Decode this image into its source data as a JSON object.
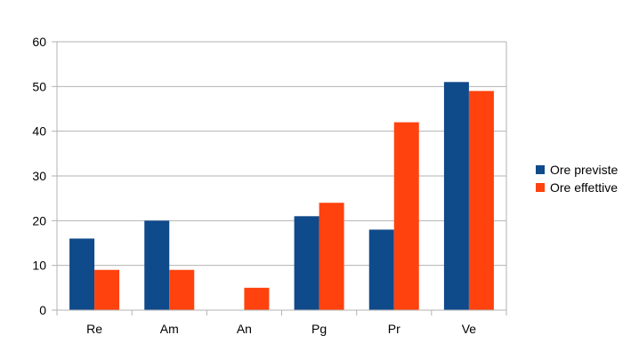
{
  "chart_data": {
    "type": "bar",
    "categories": [
      "Re",
      "Am",
      "An",
      "Pg",
      "Pr",
      "Ve"
    ],
    "series": [
      {
        "name": "Ore previste",
        "color": "#0F4A8A",
        "values": [
          16,
          20,
          0,
          21,
          18,
          51
        ]
      },
      {
        "name": "Ore effettive",
        "color": "#FF420E",
        "values": [
          9,
          9,
          5,
          24,
          42,
          49
        ]
      }
    ],
    "title": "",
    "xlabel": "",
    "ylabel": "",
    "ylim": [
      0,
      60
    ],
    "yticks": [
      "0",
      "10",
      "20",
      "30",
      "40",
      "50",
      "60"
    ],
    "grid": true,
    "legend_position": "right"
  }
}
